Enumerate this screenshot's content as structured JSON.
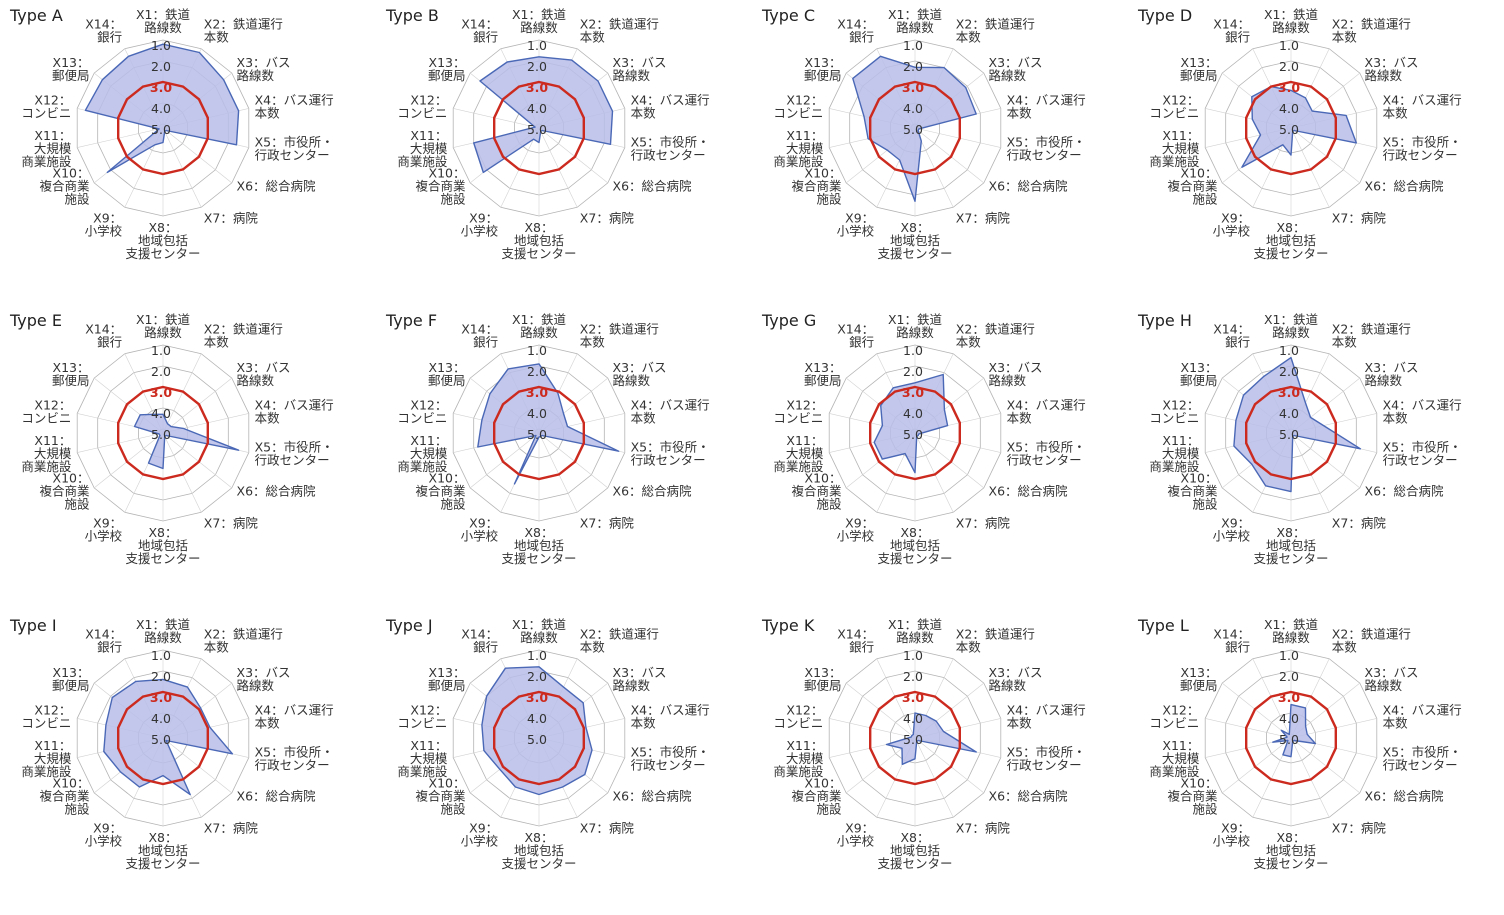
{
  "chart_data": {
    "type": "radar",
    "axes": [
      [
        "X1：鉄道",
        "路線数"
      ],
      [
        "X2：鉄道運行",
        "本数"
      ],
      [
        "X3：バス",
        "路線数"
      ],
      [
        "X4：バス運行",
        "本数"
      ],
      [
        "X5：市役所・",
        "行政センター"
      ],
      [
        "X6：総合病院"
      ],
      [
        "X7：病院"
      ],
      [
        "X8：",
        "地域包括",
        "支援センター"
      ],
      [
        "X9：",
        "小学校"
      ],
      [
        "X10：",
        "複合商業",
        "施設"
      ],
      [
        "X11：",
        "大規模",
        "商業施設"
      ],
      [
        "X12：",
        "コンビニ"
      ],
      [
        "X13：",
        "郵便局"
      ],
      [
        "X14：",
        "銀行"
      ]
    ],
    "rlim": [
      1.0,
      5.0
    ],
    "ticks": [
      "1.0",
      "2.0",
      "3.0",
      "4.0",
      "5.0"
    ],
    "reference_value": 3.0,
    "colors": {
      "series_fill": "#b7bde8",
      "series_line": "#4a68b6",
      "reference": "#cc2a1e",
      "grid": "#b4b4b4"
    },
    "panels": [
      {
        "title": "Type A",
        "values": [
          1.2,
          1.2,
          1.5,
          1.5,
          1.6,
          5.0,
          5.0,
          4.5,
          4.3,
          1.8,
          5.0,
          1.4,
          1.5,
          1.4
        ]
      },
      {
        "title": "Type B",
        "values": [
          1.8,
          1.6,
          1.6,
          1.6,
          1.7,
          5.0,
          5.0,
          4.5,
          4.6,
          1.8,
          2.0,
          5.0,
          1.6,
          1.7
        ]
      },
      {
        "title": "Type C",
        "values": [
          2.3,
          2.0,
          2.1,
          2.2,
          5.0,
          5.0,
          4.5,
          1.7,
          3.5,
          3.5,
          2.9,
          2.7,
          1.4,
          1.4
        ]
      },
      {
        "title": "Type D",
        "values": [
          3.4,
          3.6,
          3.9,
          2.5,
          2.0,
          5.0,
          5.0,
          3.9,
          4.3,
          2.2,
          3.7,
          3.3,
          2.8,
          3.0
        ]
      },
      {
        "title": "Type E",
        "values": [
          4.3,
          4.7,
          4.7,
          4.2,
          1.5,
          5.0,
          5.0,
          3.5,
          3.6,
          5.0,
          5.0,
          3.8,
          3.8,
          4.2
        ]
      },
      {
        "title": "Type F",
        "values": [
          1.9,
          3.1,
          3.7,
          3.8,
          1.3,
          5.0,
          5.0,
          5.0,
          2.5,
          5.0,
          2.2,
          2.4,
          2.2,
          1.8
        ]
      },
      {
        "title": "Type G",
        "values": [
          2.8,
          2.1,
          3.4,
          3.6,
          5.0,
          5.0,
          5.0,
          3.3,
          4.1,
          3.2,
          3.2,
          3.6,
          3.1,
          2.8
        ]
      },
      {
        "title": "Type H",
        "values": [
          1.6,
          3.6,
          4.0,
          3.6,
          1.8,
          5.0,
          5.0,
          2.4,
          2.4,
          2.8,
          2.4,
          2.5,
          2.3,
          2.2
        ]
      },
      {
        "title": "Type I",
        "values": [
          2.4,
          2.5,
          2.9,
          2.9,
          1.8,
          5.0,
          2.2,
          3.4,
          2.6,
          2.6,
          2.3,
          2.4,
          2.1,
          2.2
        ]
      },
      {
        "title": "Type J",
        "values": [
          1.8,
          2.5,
          2.5,
          2.9,
          2.6,
          2.4,
          2.6,
          2.5,
          2.6,
          2.8,
          2.5,
          2.4,
          2.0,
          1.5
        ]
      },
      {
        "title": "Type K",
        "values": [
          4.0,
          4.0,
          3.9,
          3.8,
          2.2,
          5.0,
          5.0,
          4.2,
          3.8,
          4.4,
          3.8,
          5.0,
          5.0,
          5.0
        ]
      },
      {
        "title": "Type L",
        "values": [
          3.6,
          3.6,
          4.3,
          4.4,
          4.0,
          5.0,
          5.0,
          4.3,
          4.3,
          5.0,
          4.3,
          5.0,
          4.6,
          5.0
        ]
      }
    ]
  }
}
